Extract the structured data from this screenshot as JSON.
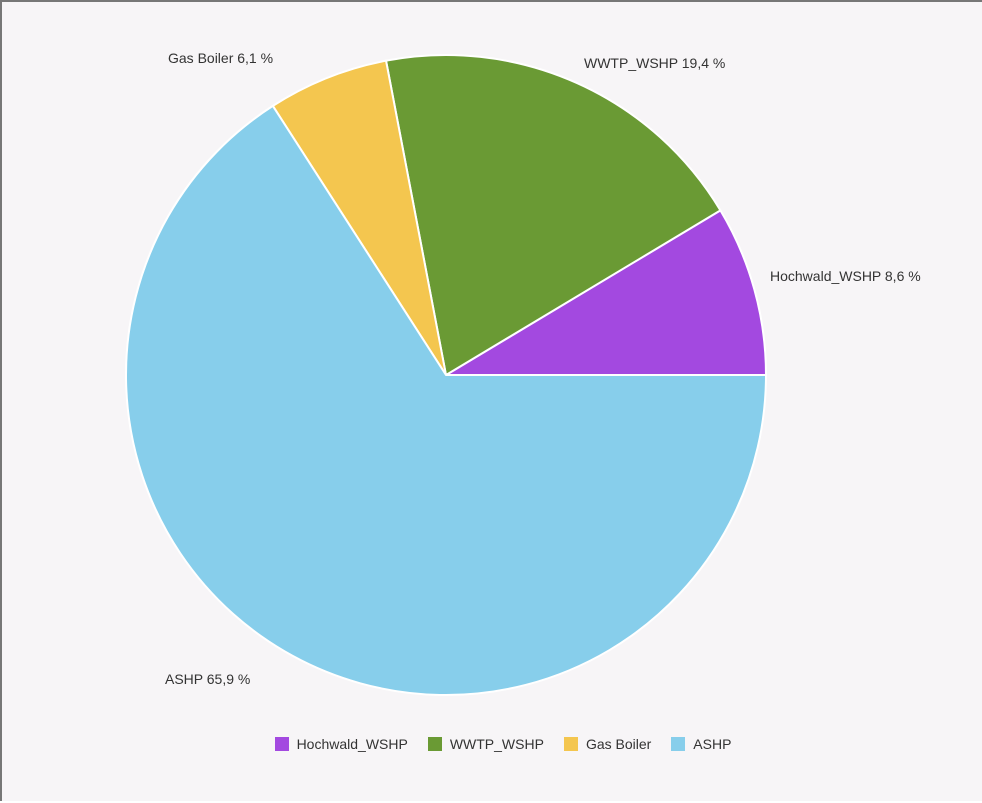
{
  "chart_data": {
    "type": "pie",
    "start_angle_deg": 0,
    "direction": "counterclockwise",
    "series": [
      {
        "name": "Hochwald_WSHP",
        "value": 8.6,
        "label": "Hochwald_WSHP 8,6 %",
        "color": "#a349e0"
      },
      {
        "name": "WWTP_WSHP",
        "value": 19.4,
        "label": "WWTP_WSHP 19,4 %",
        "color": "#6a9a34"
      },
      {
        "name": "Gas Boiler",
        "value": 6.1,
        "label": "Gas Boiler 6,1 %",
        "color": "#f4c64f"
      },
      {
        "name": "ASHP",
        "value": 65.9,
        "label": "ASHP 65,9 %",
        "color": "#87ceeb"
      }
    ],
    "legend_position": "bottom"
  }
}
